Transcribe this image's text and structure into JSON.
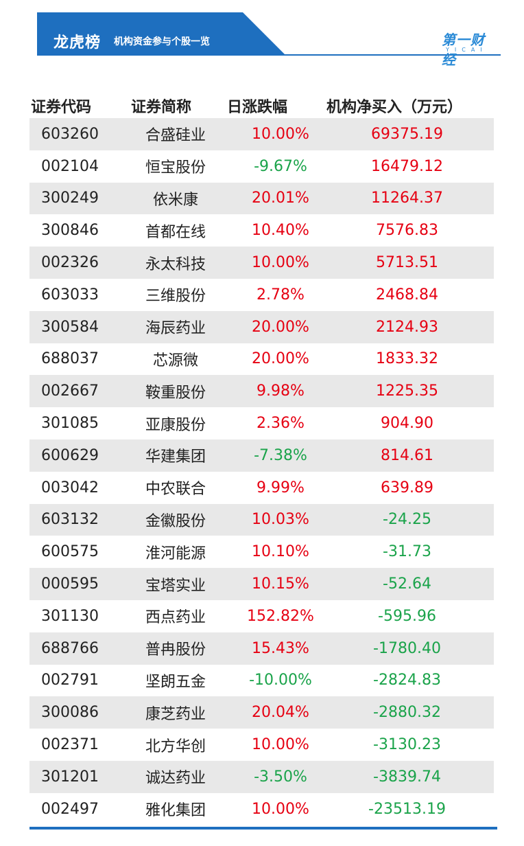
{
  "banner": {
    "title": "龙虎榜",
    "subtitle": "机构资金参与个股一览",
    "logo_text": "第一财经",
    "logo_sub": "YICAI"
  },
  "colors": {
    "banner_blue": "#1e6fbf",
    "up_red": "#e60012",
    "down_green": "#1aa34a",
    "row_stripe": "#e8e8e8"
  },
  "table": {
    "headers": [
      "证券代码",
      "证券简称",
      "日涨跌幅",
      "机构净买入（万元）"
    ],
    "rows": [
      {
        "code": "603260",
        "name": "合盛硅业",
        "change": "10.00%",
        "net_buy": "69375.19"
      },
      {
        "code": "002104",
        "name": "恒宝股份",
        "change": "-9.67%",
        "net_buy": "16479.12"
      },
      {
        "code": "300249",
        "name": "依米康",
        "change": "20.01%",
        "net_buy": "11264.37"
      },
      {
        "code": "300846",
        "name": "首都在线",
        "change": "10.40%",
        "net_buy": "7576.83"
      },
      {
        "code": "002326",
        "name": "永太科技",
        "change": "10.00%",
        "net_buy": "5713.51"
      },
      {
        "code": "603033",
        "name": "三维股份",
        "change": "2.78%",
        "net_buy": "2468.84"
      },
      {
        "code": "300584",
        "name": "海辰药业",
        "change": "20.00%",
        "net_buy": "2124.93"
      },
      {
        "code": "688037",
        "name": "芯源微",
        "change": "20.00%",
        "net_buy": "1833.32"
      },
      {
        "code": "002667",
        "name": "鞍重股份",
        "change": "9.98%",
        "net_buy": "1225.35"
      },
      {
        "code": "301085",
        "name": "亚康股份",
        "change": "2.36%",
        "net_buy": "904.90"
      },
      {
        "code": "600629",
        "name": "华建集团",
        "change": "-7.38%",
        "net_buy": "814.61"
      },
      {
        "code": "003042",
        "name": "中农联合",
        "change": "9.99%",
        "net_buy": "639.89"
      },
      {
        "code": "603132",
        "name": "金徽股份",
        "change": "10.03%",
        "net_buy": "-24.25"
      },
      {
        "code": "600575",
        "name": "淮河能源",
        "change": "10.10%",
        "net_buy": "-31.73"
      },
      {
        "code": "000595",
        "name": "宝塔实业",
        "change": "10.15%",
        "net_buy": "-52.64"
      },
      {
        "code": "301130",
        "name": "西点药业",
        "change": "152.82%",
        "net_buy": "-595.96"
      },
      {
        "code": "688766",
        "name": "普冉股份",
        "change": "15.43%",
        "net_buy": "-1780.40"
      },
      {
        "code": "002791",
        "name": "坚朗五金",
        "change": "-10.00%",
        "net_buy": "-2824.83"
      },
      {
        "code": "300086",
        "name": "康芝药业",
        "change": "20.04%",
        "net_buy": "-2880.32"
      },
      {
        "code": "002371",
        "name": "北方华创",
        "change": "10.00%",
        "net_buy": "-3130.23"
      },
      {
        "code": "301201",
        "name": "诚达药业",
        "change": "-3.50%",
        "net_buy": "-3839.74"
      },
      {
        "code": "002497",
        "name": "雅化集团",
        "change": "10.00%",
        "net_buy": "-23513.19"
      }
    ]
  }
}
